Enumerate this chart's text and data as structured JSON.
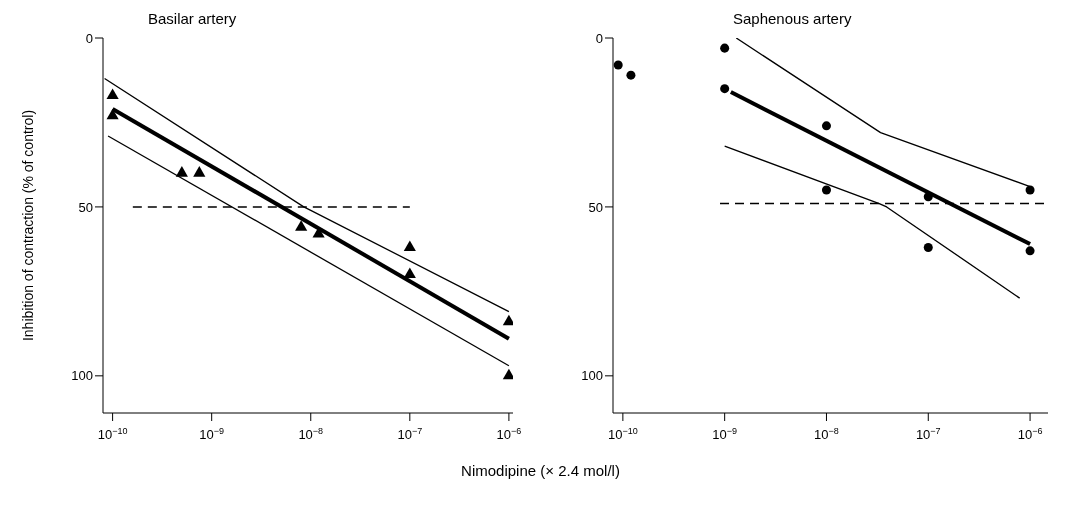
{
  "chart_data": [
    {
      "type": "scatter",
      "title": "Basilar artery",
      "xlabel": "Nimodipine (× 2.4 mol/l)",
      "ylabel": "Inhibition of contraction (% of control)",
      "log": "x",
      "xlim": [
        8e-11,
        1.1e-06
      ],
      "xticks": [
        {
          "value": 1e-10,
          "label": "10$^{−10}$"
        },
        {
          "value": 1e-09,
          "label": "10$^{−9}$"
        },
        {
          "value": 1e-08,
          "label": "10$^{−8}$"
        },
        {
          "value": 1e-07,
          "label": "10$^{−7}$"
        },
        {
          "value": 1e-06,
          "label": "10$^{−6}$"
        }
      ],
      "ylim": [
        111,
        0
      ],
      "yticks": [
        0,
        50,
        100
      ],
      "series": [
        {
          "type": "scatter",
          "marker": "triangle",
          "color": "#000000",
          "x": [
            1e-10,
            1e-10,
            5e-10,
            7.5e-10,
            8e-09,
            1.2e-08,
            1e-07,
            1e-07,
            1e-06,
            1e-06
          ],
          "values": [
            17,
            23,
            40,
            40,
            56,
            58,
            62,
            70,
            84,
            100
          ]
        },
        {
          "type": "line",
          "marker": "none",
          "color": "#000000",
          "x": [
            1e-10,
            1e-06
          ],
          "values": [
            21,
            89
          ]
        },
        {
          "type": "line",
          "marker": "none",
          "color": "#000000",
          "x": [
            8.3e-11,
            8.5e-09,
            1e-08,
            1e-06
          ],
          "values": [
            12,
            50,
            51,
            81
          ]
        },
        {
          "type": "line",
          "marker": "none",
          "color": "#000000",
          "x": [
            9e-11,
            1e-06
          ],
          "values": [
            29,
            97
          ]
        },
        {
          "type": "line",
          "marker": "none",
          "line_style": "dashed",
          "color": "#000000",
          "x": [
            1.6e-10,
            1e-07
          ],
          "values": [
            50,
            50
          ]
        }
      ]
    },
    {
      "type": "scatter",
      "title": "Saphenous artery",
      "log": "x",
      "xlim": [
        8e-11,
        1.5e-06
      ],
      "xticks": [
        {
          "value": 1e-10,
          "label": "10$^{−10}$"
        },
        {
          "value": 1e-09,
          "label": "10$^{−9}$"
        },
        {
          "value": 1e-08,
          "label": "10$^{−8}$"
        },
        {
          "value": 1e-07,
          "label": "10$^{−7}$"
        },
        {
          "value": 1e-06,
          "label": "10$^{−6}$"
        }
      ],
      "ylim": [
        111,
        0
      ],
      "yticks": [
        0,
        50,
        100
      ],
      "series": [
        {
          "type": "scatter",
          "marker": "circle",
          "color": "#000000",
          "x": [
            9e-11,
            1.2e-10,
            1e-09,
            1e-09,
            1e-08,
            1e-08,
            1e-07,
            1e-07,
            1e-06,
            1e-06
          ],
          "values": [
            8,
            11,
            3,
            15,
            26,
            45,
            47,
            62,
            45,
            63
          ]
        },
        {
          "type": "line",
          "marker": "none",
          "color": "#000000",
          "x": [
            1.15e-09,
            1e-06
          ],
          "values": [
            16,
            61
          ]
        },
        {
          "type": "line",
          "marker": "none",
          "color": "#000000",
          "x": [
            1.3e-09,
            3.4e-08,
            1e-06
          ],
          "values": [
            0,
            28,
            44
          ]
        },
        {
          "type": "line",
          "marker": "none",
          "color": "#000000",
          "x": [
            1e-09,
            3.3e-08,
            3.9e-08,
            7.9e-07
          ],
          "values": [
            32,
            49,
            50,
            77
          ]
        },
        {
          "type": "line",
          "marker": "none",
          "line_style": "dashed",
          "color": "#000000",
          "x": [
            9e-10,
            1.45e-06
          ],
          "values": [
            49,
            49
          ]
        }
      ]
    }
  ]
}
